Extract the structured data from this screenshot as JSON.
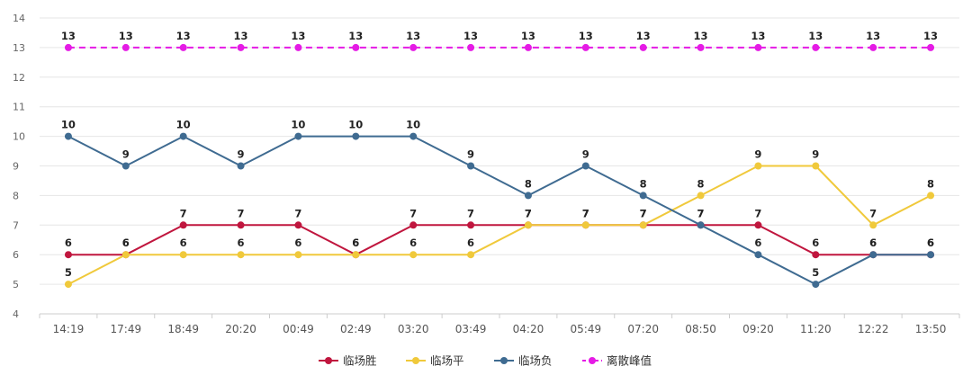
{
  "chart_data": {
    "type": "line",
    "x": [
      "14:19",
      "17:49",
      "18:49",
      "20:20",
      "00:49",
      "02:49",
      "03:20",
      "03:49",
      "04:20",
      "05:49",
      "07:20",
      "08:50",
      "09:20",
      "11:20",
      "12:22",
      "13:50"
    ],
    "ylim": [
      4,
      14
    ],
    "yticks": [
      4,
      5,
      6,
      7,
      8,
      9,
      10,
      11,
      12,
      13,
      14
    ],
    "grid": true,
    "legend_position": "bottom",
    "show_data_labels": true,
    "series": [
      {
        "name": "临场胜",
        "color": "#c0163e",
        "dashed": false,
        "values": [
          6,
          6,
          7,
          7,
          7,
          6,
          7,
          7,
          7,
          7,
          7,
          7,
          7,
          6,
          6,
          6
        ]
      },
      {
        "name": "临场平",
        "color": "#f0c93b",
        "dashed": false,
        "values": [
          5,
          6,
          6,
          6,
          6,
          6,
          6,
          6,
          7,
          7,
          7,
          8,
          9,
          9,
          7,
          8
        ]
      },
      {
        "name": "临场负",
        "color": "#3f6b91",
        "dashed": false,
        "values": [
          10,
          9,
          10,
          9,
          10,
          10,
          10,
          9,
          8,
          9,
          8,
          7,
          6,
          5,
          6,
          6
        ]
      },
      {
        "name": "离散峰值",
        "color": "#e51be5",
        "dashed": true,
        "values": [
          13,
          13,
          13,
          13,
          13,
          13,
          13,
          13,
          13,
          13,
          13,
          13,
          13,
          13,
          13,
          13
        ]
      }
    ]
  }
}
